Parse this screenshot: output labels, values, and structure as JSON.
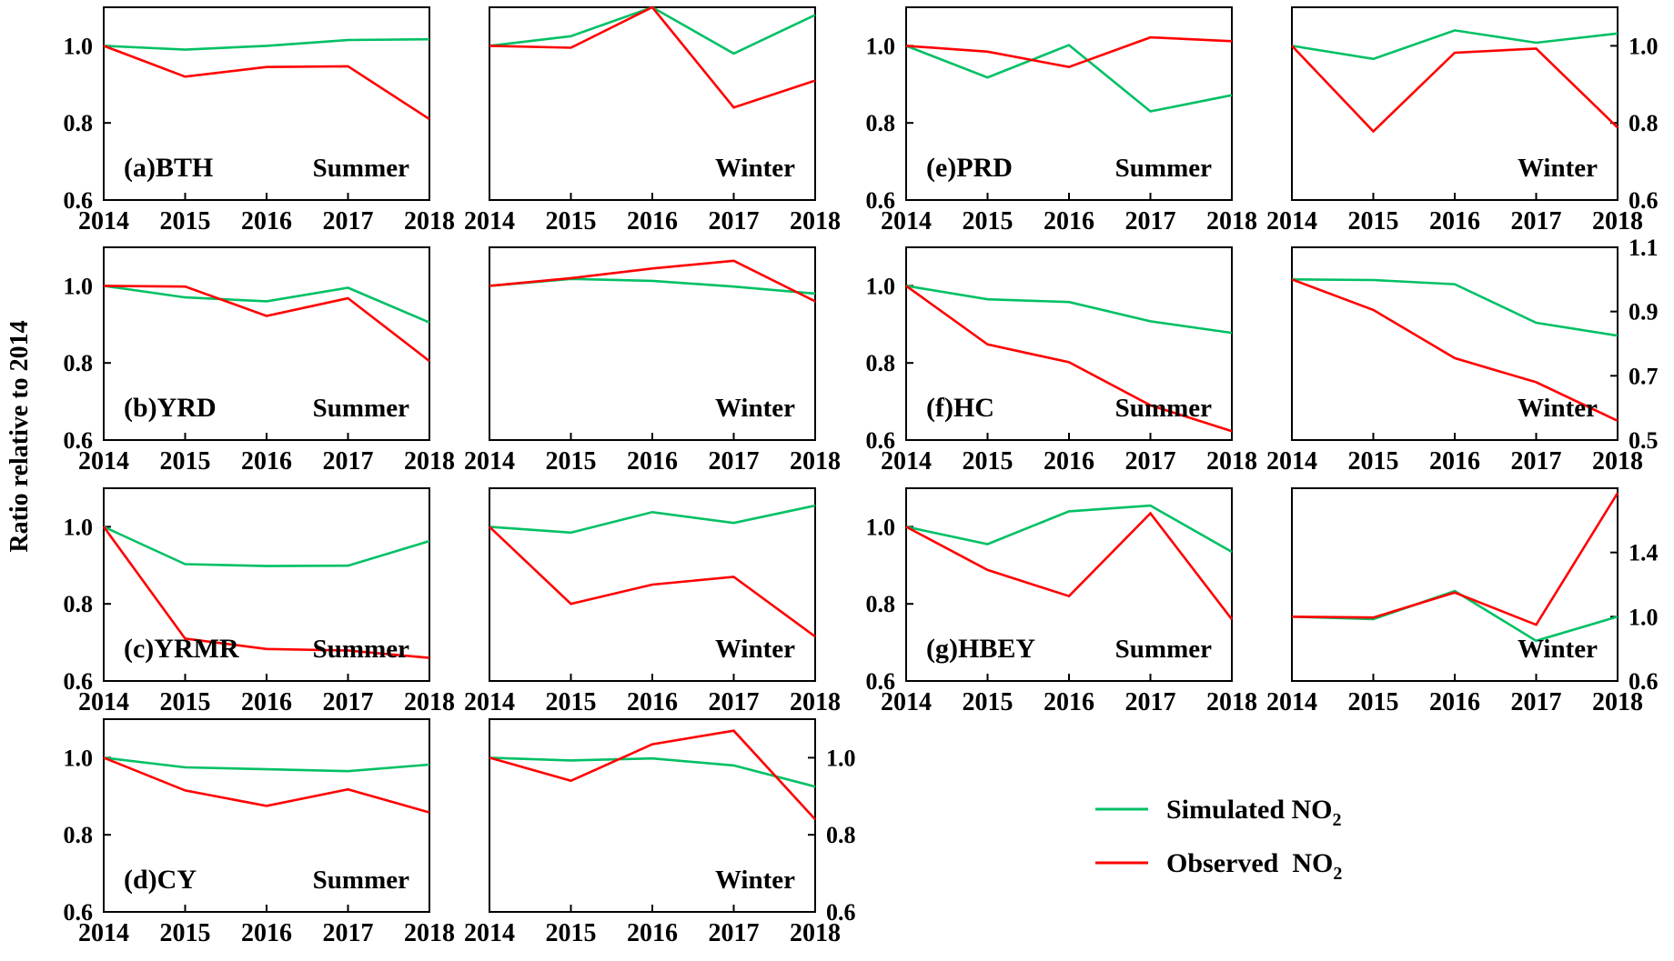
{
  "figure": {
    "ylabel": "Ratio relative to 2014"
  },
  "legend": {
    "items": [
      {
        "key": "simulated",
        "label": "Simulated NO",
        "sub": "2",
        "color": "#00c064"
      },
      {
        "key": "observed",
        "label": "Observed  NO",
        "sub": "2",
        "color": "#ff0000"
      }
    ]
  },
  "chart_data": [
    {
      "type": "line",
      "id": "bth-summer",
      "panel_label": "(a)BTH",
      "season": "Summer",
      "x": [
        "2014",
        "2015",
        "2016",
        "2017",
        "2018"
      ],
      "ylim": [
        0.6,
        1.1
      ],
      "yticks": [
        "0.6",
        "0.8",
        "1.0"
      ],
      "series": [
        {
          "name": "Simulated NO2",
          "values": [
            1.0,
            0.99,
            1.0,
            1.015,
            1.017
          ]
        },
        {
          "name": "Observed NO2",
          "values": [
            1.0,
            0.92,
            0.945,
            0.947,
            0.81
          ]
        }
      ]
    },
    {
      "type": "line",
      "id": "bth-winter",
      "panel_label": "",
      "season": "Winter",
      "x": [
        "2014",
        "2015",
        "2016",
        "2017",
        "2018"
      ],
      "ylim": [
        0.6,
        1.1
      ],
      "yticks": [],
      "series": [
        {
          "name": "Simulated NO2",
          "values": [
            1.0,
            1.025,
            1.1,
            0.98,
            1.08
          ]
        },
        {
          "name": "Observed NO2",
          "values": [
            1.0,
            0.995,
            1.1,
            0.84,
            0.91
          ]
        }
      ]
    },
    {
      "type": "line",
      "id": "yrd-summer",
      "panel_label": "(b)YRD",
      "season": "Summer",
      "x": [
        "2014",
        "2015",
        "2016",
        "2017",
        "2018"
      ],
      "ylim": [
        0.6,
        1.1
      ],
      "yticks": [
        "0.6",
        "0.8",
        "1.0"
      ],
      "series": [
        {
          "name": "Simulated NO2",
          "values": [
            1.0,
            0.97,
            0.96,
            0.995,
            0.905
          ]
        },
        {
          "name": "Observed NO2",
          "values": [
            1.0,
            0.998,
            0.922,
            0.968,
            0.805
          ]
        }
      ]
    },
    {
      "type": "line",
      "id": "yrd-winter",
      "panel_label": "",
      "season": "Winter",
      "x": [
        "2014",
        "2015",
        "2016",
        "2017",
        "2018"
      ],
      "ylim": [
        0.6,
        1.1
      ],
      "yticks": [],
      "series": [
        {
          "name": "Simulated NO2",
          "values": [
            1.0,
            1.018,
            1.013,
            0.998,
            0.98
          ]
        },
        {
          "name": "Observed NO2",
          "values": [
            1.0,
            1.02,
            1.045,
            1.065,
            0.96
          ]
        }
      ]
    },
    {
      "type": "line",
      "id": "yrmr-summer",
      "panel_label": "(c)YRMR",
      "season": "Summer",
      "x": [
        "2014",
        "2015",
        "2016",
        "2017",
        "2018"
      ],
      "ylim": [
        0.6,
        1.1
      ],
      "yticks": [
        "0.6",
        "0.8",
        "1.0"
      ],
      "series": [
        {
          "name": "Simulated NO2",
          "values": [
            1.0,
            0.903,
            0.898,
            0.899,
            0.963
          ]
        },
        {
          "name": "Observed NO2",
          "values": [
            1.0,
            0.71,
            0.683,
            0.679,
            0.66
          ]
        }
      ]
    },
    {
      "type": "line",
      "id": "yrmr-winter",
      "panel_label": "",
      "season": "Winter",
      "x": [
        "2014",
        "2015",
        "2016",
        "2017",
        "2018"
      ],
      "ylim": [
        0.6,
        1.1
      ],
      "yticks": [],
      "series": [
        {
          "name": "Simulated NO2",
          "values": [
            1.0,
            0.985,
            1.038,
            1.01,
            1.055
          ]
        },
        {
          "name": "Observed NO2",
          "values": [
            1.0,
            0.8,
            0.85,
            0.87,
            0.715
          ]
        }
      ]
    },
    {
      "type": "line",
      "id": "cy-summer",
      "panel_label": "(d)CY",
      "season": "Summer",
      "x": [
        "2014",
        "2015",
        "2016",
        "2017",
        "2018"
      ],
      "ylim": [
        0.6,
        1.1
      ],
      "yticks": [
        "0.6",
        "0.8",
        "1.0"
      ],
      "series": [
        {
          "name": "Simulated NO2",
          "values": [
            1.0,
            0.975,
            0.97,
            0.965,
            0.982
          ]
        },
        {
          "name": "Observed NO2",
          "values": [
            1.0,
            0.915,
            0.875,
            0.918,
            0.858
          ]
        }
      ]
    },
    {
      "type": "line",
      "id": "cy-winter",
      "panel_label": "",
      "season": "Winter",
      "x": [
        "2014",
        "2015",
        "2016",
        "2017",
        "2018"
      ],
      "ylim": [
        0.6,
        1.1
      ],
      "yticks": [
        "0.6",
        "0.8",
        "1.0"
      ],
      "yaxis_side": "right",
      "series": [
        {
          "name": "Simulated NO2",
          "values": [
            1.0,
            0.993,
            0.998,
            0.98,
            0.925
          ]
        },
        {
          "name": "Observed NO2",
          "values": [
            1.0,
            0.94,
            1.035,
            1.07,
            0.84
          ]
        }
      ]
    },
    {
      "type": "line",
      "id": "prd-summer",
      "panel_label": "(e)PRD",
      "season": "Summer",
      "x": [
        "2014",
        "2015",
        "2016",
        "2017",
        "2018"
      ],
      "ylim": [
        0.6,
        1.1
      ],
      "yticks": [
        "0.6",
        "0.8",
        "1.0"
      ],
      "series": [
        {
          "name": "Simulated NO2",
          "values": [
            1.0,
            0.918,
            1.002,
            0.83,
            0.872
          ]
        },
        {
          "name": "Observed NO2",
          "values": [
            1.0,
            0.985,
            0.945,
            1.022,
            1.012
          ]
        }
      ]
    },
    {
      "type": "line",
      "id": "prd-winter",
      "panel_label": "",
      "season": "Winter",
      "x": [
        "2014",
        "2015",
        "2016",
        "2017",
        "2018"
      ],
      "ylim": [
        0.6,
        1.1
      ],
      "yticks": [
        "0.6",
        "0.8",
        "1.0"
      ],
      "yaxis_side": "right",
      "series": [
        {
          "name": "Simulated NO2",
          "values": [
            1.0,
            0.966,
            1.04,
            1.008,
            1.032
          ]
        },
        {
          "name": "Observed NO2",
          "values": [
            1.0,
            0.778,
            0.982,
            0.993,
            0.788
          ]
        }
      ]
    },
    {
      "type": "line",
      "id": "hc-summer",
      "panel_label": "(f)HC",
      "season": "Summer",
      "x": [
        "2014",
        "2015",
        "2016",
        "2017",
        "2018"
      ],
      "ylim": [
        0.6,
        1.1
      ],
      "yticks": [
        "0.6",
        "0.8",
        "1.0"
      ],
      "series": [
        {
          "name": "Simulated NO2",
          "values": [
            1.0,
            0.965,
            0.958,
            0.908,
            0.878
          ]
        },
        {
          "name": "Observed NO2",
          "values": [
            1.0,
            0.848,
            0.802,
            0.69,
            0.623
          ]
        }
      ]
    },
    {
      "type": "line",
      "id": "hc-winter",
      "panel_label": "",
      "season": "Winter",
      "x": [
        "2014",
        "2015",
        "2016",
        "2017",
        "2018"
      ],
      "ylim": [
        0.5,
        1.1
      ],
      "yticks": [
        "0.5",
        "0.7",
        "0.9",
        "1.1"
      ],
      "yaxis_side": "right",
      "series": [
        {
          "name": "Simulated NO2",
          "values": [
            1.0,
            0.998,
            0.985,
            0.865,
            0.825
          ]
        },
        {
          "name": "Observed NO2",
          "values": [
            1.0,
            0.905,
            0.755,
            0.68,
            0.56
          ]
        }
      ]
    },
    {
      "type": "line",
      "id": "hbey-summer",
      "panel_label": "(g)HBEY",
      "season": "Summer",
      "x": [
        "2014",
        "2015",
        "2016",
        "2017",
        "2018"
      ],
      "ylim": [
        0.6,
        1.1
      ],
      "yticks": [
        "0.6",
        "0.8",
        "1.0"
      ],
      "series": [
        {
          "name": "Simulated NO2",
          "values": [
            1.0,
            0.955,
            1.04,
            1.055,
            0.935
          ]
        },
        {
          "name": "Observed NO2",
          "values": [
            1.0,
            0.888,
            0.82,
            1.035,
            0.76
          ]
        }
      ]
    },
    {
      "type": "line",
      "id": "hbey-winter",
      "panel_label": "",
      "season": "Winter",
      "x": [
        "2014",
        "2015",
        "2016",
        "2017",
        "2018"
      ],
      "ylim": [
        0.6,
        1.8
      ],
      "yticks": [
        "0.6",
        "1.0",
        "1.4"
      ],
      "yaxis_side": "right",
      "series": [
        {
          "name": "Simulated NO2",
          "values": [
            1.0,
            0.985,
            1.16,
            0.85,
            1.0
          ]
        },
        {
          "name": "Observed NO2",
          "values": [
            1.0,
            0.995,
            1.15,
            0.95,
            1.77
          ]
        }
      ]
    }
  ]
}
